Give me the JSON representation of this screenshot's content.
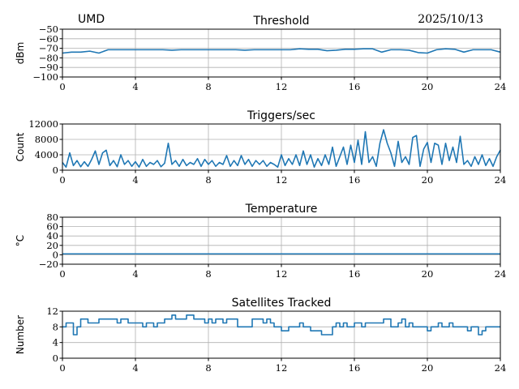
{
  "header": {
    "left": "UMD",
    "right": "2025/10/13"
  },
  "colors": {
    "line": "#1f77b4",
    "grid": "#b0b0b0",
    "axis": "#000000"
  },
  "chart_data": [
    {
      "type": "line",
      "title": "Threshold",
      "xlabel": "",
      "ylabel": "dBm",
      "xlim": [
        0,
        24
      ],
      "ylim": [
        -100,
        -50
      ],
      "xticks": [
        0,
        4,
        8,
        12,
        16,
        20,
        24
      ],
      "yticks": [
        -100,
        -90,
        -80,
        -70,
        -60,
        -50
      ],
      "ytick_labels": [
        "−100",
        "−90",
        "−80",
        "−70",
        "−60",
        "−50"
      ],
      "grid": true,
      "step": false,
      "x_step": 0.5,
      "values": [
        -75,
        -74,
        -74,
        -73,
        -75,
        -71.5,
        -71.5,
        -71.5,
        -71.5,
        -71.5,
        -71.5,
        -71.5,
        -72,
        -71.5,
        -71.5,
        -71.5,
        -71.5,
        -71.5,
        -71.5,
        -71.5,
        -72,
        -71.5,
        -71.5,
        -71.5,
        -71.5,
        -71.5,
        -70.5,
        -71,
        -71,
        -72.5,
        -72,
        -71,
        -71,
        -70.5,
        -70.5,
        -74,
        -71.5,
        -71.5,
        -72,
        -74.5,
        -75,
        -71.5,
        -70.5,
        -71,
        -74,
        -71.5,
        -71.5,
        -71.5,
        -74
      ]
    },
    {
      "type": "line",
      "title": "Triggers/sec",
      "xlabel": "",
      "ylabel": "Count",
      "xlim": [
        0,
        24
      ],
      "ylim": [
        0,
        12000
      ],
      "xticks": [
        0,
        4,
        8,
        12,
        16,
        20,
        24
      ],
      "yticks": [
        0,
        4000,
        8000,
        12000
      ],
      "ytick_labels": [
        "0",
        "4000",
        "8000",
        "12000"
      ],
      "grid": true,
      "step": false,
      "x_step": 0.2,
      "values": [
        2000,
        800,
        4500,
        1200,
        2500,
        900,
        2200,
        1000,
        2800,
        5000,
        1500,
        4500,
        5200,
        1200,
        2500,
        900,
        4000,
        1500,
        2500,
        1000,
        2200,
        800,
        2800,
        1000,
        2000,
        1500,
        2500,
        900,
        1800,
        7000,
        1500,
        2500,
        1000,
        2800,
        1200,
        2000,
        1500,
        3000,
        1000,
        2800,
        1500,
        2500,
        1000,
        2000,
        1500,
        3800,
        1000,
        2500,
        1200,
        3800,
        1500,
        2800,
        1000,
        2500,
        1500,
        2500,
        1000,
        2000,
        1500,
        800,
        4000,
        1200,
        3000,
        1500,
        4000,
        1200,
        5000,
        1500,
        4000,
        800,
        3000,
        1200,
        4000,
        1500,
        6000,
        1000,
        3500,
        6000,
        1500,
        6500,
        2000,
        7800,
        1500,
        10000,
        2000,
        3500,
        1000,
        7000,
        10500,
        7000,
        4500,
        1000,
        7500,
        2000,
        3500,
        1500,
        8500,
        9000,
        1000,
        5500,
        7200,
        2000,
        7000,
        6500,
        1500,
        7000,
        2500,
        6000,
        2000,
        8800,
        1500,
        2500,
        1000,
        3500,
        1500,
        4000,
        1200,
        3000,
        1000,
        3500,
        5200
      ]
    },
    {
      "type": "line",
      "title": "Temperature",
      "xlabel": "",
      "ylabel": "°C",
      "xlim": [
        0,
        24
      ],
      "ylim": [
        -20,
        80
      ],
      "xticks": [
        0,
        4,
        8,
        12,
        16,
        20,
        24
      ],
      "yticks": [
        -20,
        0,
        20,
        40,
        60,
        80
      ],
      "ytick_labels": [
        "−20",
        "0",
        "20",
        "40",
        "60",
        "80"
      ],
      "grid": true,
      "step": false,
      "x_step": 24,
      "values": [
        2,
        2
      ]
    },
    {
      "type": "line",
      "title": "Satellites Tracked",
      "xlabel": "",
      "ylabel": "Number",
      "xlim": [
        0,
        24
      ],
      "ylim": [
        0,
        12
      ],
      "xticks": [
        0,
        4,
        8,
        12,
        16,
        20,
        24
      ],
      "yticks": [
        0,
        4,
        8,
        12
      ],
      "ytick_labels": [
        "0",
        "4",
        "8",
        "12"
      ],
      "grid": true,
      "step": true,
      "x_step": 0.2,
      "values": [
        8,
        9,
        9,
        6,
        8,
        10,
        10,
        9,
        9,
        9,
        10,
        10,
        10,
        10,
        10,
        9,
        10,
        10,
        9,
        9,
        9,
        9,
        8,
        9,
        9,
        8,
        9,
        9,
        10,
        10,
        11,
        10,
        10,
        10,
        11,
        11,
        10,
        10,
        10,
        9,
        10,
        9,
        10,
        10,
        9,
        10,
        10,
        10,
        8,
        8,
        8,
        8,
        10,
        10,
        10,
        9,
        10,
        9,
        8,
        8,
        7,
        7,
        8,
        8,
        8,
        9,
        8,
        8,
        7,
        7,
        7,
        6,
        6,
        6,
        8,
        9,
        8,
        9,
        8,
        8,
        9,
        9,
        8,
        9,
        9,
        9,
        9,
        9,
        10,
        10,
        8,
        8,
        9,
        10,
        8,
        9,
        8,
        8,
        8,
        8,
        7,
        8,
        8,
        9,
        8,
        8,
        9,
        8,
        8,
        8,
        8,
        7,
        8,
        8,
        6,
        7,
        8,
        8,
        8,
        8,
        8
      ]
    }
  ]
}
